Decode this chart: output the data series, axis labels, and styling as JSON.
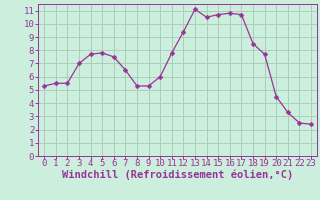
{
  "x": [
    0,
    1,
    2,
    3,
    4,
    5,
    6,
    7,
    8,
    9,
    10,
    11,
    12,
    13,
    14,
    15,
    16,
    17,
    18,
    19,
    20,
    21,
    22,
    23
  ],
  "y": [
    5.3,
    5.5,
    5.5,
    7.0,
    7.7,
    7.8,
    7.5,
    6.5,
    5.3,
    5.3,
    6.0,
    7.8,
    9.4,
    11.1,
    10.5,
    10.7,
    10.8,
    10.7,
    8.5,
    7.7,
    4.5,
    3.3,
    2.5,
    2.4
  ],
  "line_color": "#993399",
  "marker": "D",
  "marker_size": 2.5,
  "bg_color": "#cceedd",
  "grid_color": "#aaccbb",
  "xlabel": "Windchill (Refroidissement éolien,°C)",
  "ylabel": "",
  "xlim": [
    -0.5,
    23.5
  ],
  "ylim": [
    0,
    11.5
  ],
  "xticks": [
    0,
    1,
    2,
    3,
    4,
    5,
    6,
    7,
    8,
    9,
    10,
    11,
    12,
    13,
    14,
    15,
    16,
    17,
    18,
    19,
    20,
    21,
    22,
    23
  ],
  "yticks": [
    0,
    1,
    2,
    3,
    4,
    5,
    6,
    7,
    8,
    9,
    10,
    11
  ],
  "tick_color": "#993399",
  "tick_fontsize": 6.5,
  "xlabel_fontsize": 7.5,
  "label_color": "#993399",
  "spine_color": "#993399"
}
